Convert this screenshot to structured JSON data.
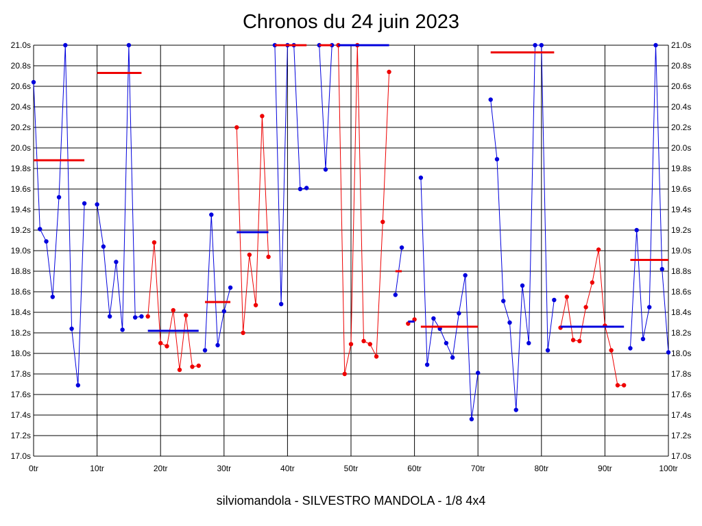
{
  "title": "Chronos du 24 juin 2023",
  "footer": "silviomandola - SILVESTRO MANDOLA - 1/8 4x4",
  "colors": {
    "blue": "#0000dd",
    "red": "#ee0000",
    "grid": "#000000"
  },
  "chart_data": {
    "type": "line",
    "xlim": [
      0,
      100
    ],
    "ylim": [
      17.0,
      21.0
    ],
    "x_ticks": [
      {
        "v": 0,
        "label": "0tr"
      },
      {
        "v": 10,
        "label": "10tr"
      },
      {
        "v": 20,
        "label": "20tr"
      },
      {
        "v": 30,
        "label": "30tr"
      },
      {
        "v": 40,
        "label": "40tr"
      },
      {
        "v": 50,
        "label": "50tr"
      },
      {
        "v": 60,
        "label": "60tr"
      },
      {
        "v": 70,
        "label": "70tr"
      },
      {
        "v": 80,
        "label": "80tr"
      },
      {
        "v": 90,
        "label": "90tr"
      },
      {
        "v": 100,
        "label": "100tr"
      }
    ],
    "y_ticks": [
      {
        "v": 17.0,
        "label": "17.0s"
      },
      {
        "v": 17.2,
        "label": "17.2s"
      },
      {
        "v": 17.4,
        "label": "17.4s"
      },
      {
        "v": 17.6,
        "label": "17.6s"
      },
      {
        "v": 17.8,
        "label": "17.8s"
      },
      {
        "v": 18.0,
        "label": "18.0s"
      },
      {
        "v": 18.2,
        "label": "18.2s"
      },
      {
        "v": 18.4,
        "label": "18.4s"
      },
      {
        "v": 18.6,
        "label": "18.6s"
      },
      {
        "v": 18.8,
        "label": "18.8s"
      },
      {
        "v": 19.0,
        "label": "19.0s"
      },
      {
        "v": 19.2,
        "label": "19.2s"
      },
      {
        "v": 19.4,
        "label": "19.4s"
      },
      {
        "v": 19.6,
        "label": "19.6s"
      },
      {
        "v": 19.8,
        "label": "19.8s"
      },
      {
        "v": 20.0,
        "label": "20.0s"
      },
      {
        "v": 20.2,
        "label": "20.2s"
      },
      {
        "v": 20.4,
        "label": "20.4s"
      },
      {
        "v": 20.6,
        "label": "20.6s"
      },
      {
        "v": 20.8,
        "label": "20.8s"
      },
      {
        "v": 21.0,
        "label": "21.0s"
      }
    ],
    "grid": true,
    "series": [
      {
        "color": "blue",
        "x": [
          0,
          1,
          2,
          3,
          4,
          5,
          6,
          7,
          8
        ],
        "y": [
          20.64,
          19.21,
          19.09,
          18.55,
          19.52,
          21.0,
          18.24,
          17.69,
          19.46
        ]
      },
      {
        "color": "blue",
        "x": [
          10,
          11,
          12,
          13,
          14,
          15,
          16,
          17
        ],
        "y": [
          19.45,
          19.04,
          18.36,
          18.89,
          18.23,
          21.0,
          18.35,
          18.36
        ]
      },
      {
        "color": "red",
        "x": [
          18,
          19,
          20,
          21,
          22,
          23,
          24,
          25,
          26
        ],
        "y": [
          18.36,
          19.08,
          18.1,
          18.07,
          18.42,
          17.84,
          18.37,
          17.87,
          17.88
        ]
      },
      {
        "color": "blue",
        "x": [
          27,
          28,
          29,
          30,
          31
        ],
        "y": [
          18.03,
          19.35,
          18.08,
          18.41,
          18.64
        ]
      },
      {
        "color": "red",
        "x": [
          32,
          33,
          34,
          35,
          36,
          37
        ],
        "y": [
          20.2,
          18.2,
          18.96,
          18.47,
          20.31,
          18.94
        ]
      },
      {
        "color": "blue",
        "x": [
          38,
          39,
          40,
          41,
          42,
          43
        ],
        "y": [
          21.0,
          18.48,
          21.0,
          21.0,
          19.6,
          19.61
        ]
      },
      {
        "color": "blue",
        "x": [
          45,
          46,
          47
        ],
        "y": [
          21.0,
          19.79,
          21.0
        ]
      },
      {
        "color": "red",
        "x": [
          48,
          49,
          50,
          51,
          52,
          53,
          54,
          55,
          56
        ],
        "y": [
          21.0,
          17.8,
          18.09,
          21.0,
          18.12,
          18.09,
          17.97,
          19.28,
          20.74
        ]
      },
      {
        "color": "blue",
        "x": [
          57,
          58
        ],
        "y": [
          18.57,
          19.03
        ]
      },
      {
        "color": "red",
        "x": [
          59,
          60
        ],
        "y": [
          18.29,
          18.33
        ]
      },
      {
        "color": "blue",
        "x": [
          61,
          62,
          63,
          64,
          65,
          66,
          67,
          68,
          69,
          70
        ],
        "y": [
          19.71,
          17.89,
          18.34,
          18.24,
          18.1,
          17.96,
          18.39,
          18.76,
          17.36,
          17.81
        ]
      },
      {
        "color": "blue",
        "x": [
          72,
          73,
          74,
          75,
          76,
          77,
          78,
          79,
          80,
          81,
          82
        ],
        "y": [
          20.47,
          19.89,
          18.51,
          18.3,
          17.45,
          18.66,
          18.1,
          21.0,
          21.0,
          18.03,
          18.52
        ]
      },
      {
        "color": "red",
        "x": [
          83,
          84,
          85,
          86,
          87,
          88,
          89,
          90,
          91,
          92,
          93
        ],
        "y": [
          18.25,
          18.55,
          18.13,
          18.12,
          18.45,
          18.69,
          19.01,
          18.27,
          18.03,
          17.69,
          17.69
        ]
      },
      {
        "color": "blue",
        "x": [
          94,
          95,
          96,
          97,
          98,
          99,
          100
        ],
        "y": [
          18.05,
          19.2,
          18.14,
          18.45,
          21.0,
          18.82,
          18.01
        ]
      }
    ],
    "averages": [
      {
        "color": "red",
        "x0": 0,
        "x1": 8,
        "y": 19.88
      },
      {
        "color": "red",
        "x0": 10,
        "x1": 17,
        "y": 20.73
      },
      {
        "color": "blue",
        "x0": 18,
        "x1": 26,
        "y": 18.22
      },
      {
        "color": "red",
        "x0": 27,
        "x1": 31,
        "y": 18.5
      },
      {
        "color": "blue",
        "x0": 32,
        "x1": 37,
        "y": 19.18
      },
      {
        "color": "red",
        "x0": 38,
        "x1": 43,
        "y": 21.0
      },
      {
        "color": "red",
        "x0": 45,
        "x1": 47,
        "y": 21.0
      },
      {
        "color": "blue",
        "x0": 48,
        "x1": 56,
        "y": 21.0
      },
      {
        "color": "red",
        "x0": 57,
        "x1": 58,
        "y": 18.8
      },
      {
        "color": "blue",
        "x0": 59,
        "x1": 60,
        "y": 18.31
      },
      {
        "color": "red",
        "x0": 61,
        "x1": 70,
        "y": 18.26
      },
      {
        "color": "red",
        "x0": 72,
        "x1": 82,
        "y": 20.93
      },
      {
        "color": "blue",
        "x0": 83,
        "x1": 93,
        "y": 18.26
      },
      {
        "color": "red",
        "x0": 94,
        "x1": 100,
        "y": 18.91
      }
    ]
  }
}
